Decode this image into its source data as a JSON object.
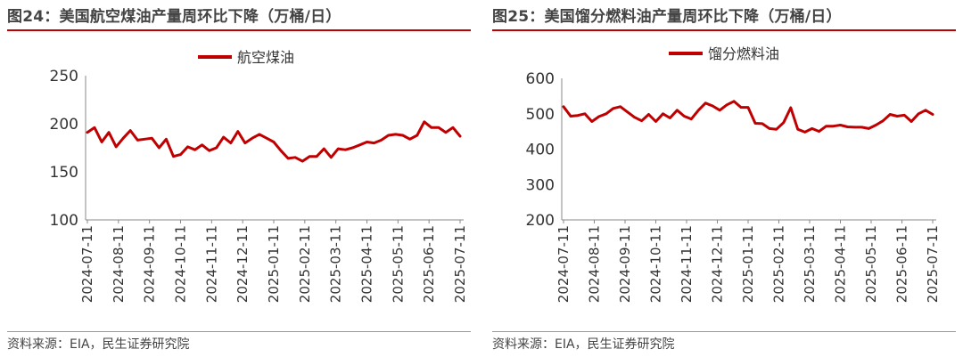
{
  "left": {
    "title": "图24：美国航空煤油产量周环比下降（万桶/日）",
    "source": "资料来源：EIA，民生证券研究院",
    "chart_data": {
      "type": "line",
      "title": "美国航空煤油产量周环比下降（万桶/日）",
      "ylim": [
        100,
        250
      ],
      "yticks": [
        100,
        150,
        200,
        250
      ],
      "xticks": [
        "2024-07-11",
        "2024-08-11",
        "2024-09-11",
        "2024-10-11",
        "2024-11-11",
        "2024-12-11",
        "2025-01-11",
        "2025-02-11",
        "2025-03-11",
        "2025-04-11",
        "2025-05-11",
        "2025-06-11",
        "2025-07-11"
      ],
      "legend_position": "top-center",
      "series": [
        {
          "name": "航空煤油",
          "color": "#c00000",
          "values": [
            191,
            196,
            181,
            191,
            176,
            185,
            193,
            183,
            184,
            185,
            175,
            184,
            166,
            168,
            176,
            173,
            178,
            172,
            175,
            186,
            180,
            192,
            180,
            185,
            189,
            185,
            181,
            172,
            164,
            165,
            161,
            166,
            166,
            174,
            165,
            174,
            173,
            175,
            178,
            181,
            180,
            183,
            188,
            189,
            188,
            184,
            188,
            202,
            196,
            196,
            191,
            196,
            187
          ]
        }
      ]
    }
  },
  "right": {
    "title": "图25：美国馏分燃料油产量周环比下降（万桶/日）",
    "source": "资料来源：EIA，民生证券研究院",
    "chart_data": {
      "type": "line",
      "title": "美国馏分燃料油产量周环比下降（万桶/日）",
      "ylim": [
        200,
        600
      ],
      "yticks": [
        200,
        300,
        400,
        500,
        600
      ],
      "xticks": [
        "2024-07-11",
        "2024-08-11",
        "2024-09-11",
        "2024-10-11",
        "2024-11-11",
        "2024-12-11",
        "2025-01-11",
        "2025-02-11",
        "2025-03-11",
        "2025-04-11",
        "2025-05-11",
        "2025-06-11",
        "2025-07-11"
      ],
      "legend_position": "top-center",
      "series": [
        {
          "name": "馏分燃料油",
          "color": "#c00000",
          "values": [
            520,
            493,
            495,
            500,
            478,
            492,
            500,
            515,
            520,
            505,
            490,
            480,
            498,
            478,
            500,
            488,
            510,
            493,
            485,
            510,
            530,
            522,
            510,
            525,
            535,
            518,
            518,
            473,
            472,
            458,
            456,
            475,
            517,
            456,
            448,
            458,
            450,
            465,
            465,
            468,
            463,
            462,
            462,
            458,
            468,
            480,
            498,
            493,
            496,
            478,
            500,
            510,
            498
          ]
        }
      ]
    }
  }
}
